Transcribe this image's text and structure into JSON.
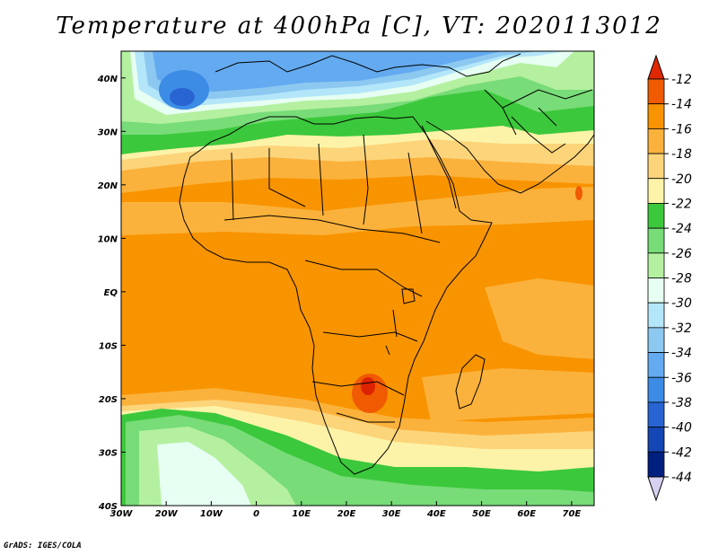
{
  "title": "Temperature at 400hPa [C], VT: 2020113012",
  "credit": "GrADS: IGES/COLA",
  "map": {
    "lon_range": [
      -30,
      75
    ],
    "lat_range": [
      -40,
      45
    ],
    "lon_ticks": [
      {
        "v": -30,
        "label": "30W"
      },
      {
        "v": -20,
        "label": "20W"
      },
      {
        "v": -10,
        "label": "10W"
      },
      {
        "v": 0,
        "label": "0"
      },
      {
        "v": 10,
        "label": "10E"
      },
      {
        "v": 20,
        "label": "20E"
      },
      {
        "v": 30,
        "label": "30E"
      },
      {
        "v": 40,
        "label": "40E"
      },
      {
        "v": 50,
        "label": "50E"
      },
      {
        "v": 60,
        "label": "60E"
      },
      {
        "v": 70,
        "label": "70E"
      }
    ],
    "lat_ticks": [
      {
        "v": 40,
        "label": "40N"
      },
      {
        "v": 30,
        "label": "30N"
      },
      {
        "v": 20,
        "label": "20N"
      },
      {
        "v": 10,
        "label": "10N"
      },
      {
        "v": 0,
        "label": "EQ"
      },
      {
        "v": -10,
        "label": "10S"
      },
      {
        "v": -20,
        "label": "20S"
      },
      {
        "v": -30,
        "label": "30S"
      },
      {
        "v": -40,
        "label": "40S"
      }
    ]
  },
  "colorbar": {
    "labels": [
      "-12",
      "-14",
      "-16",
      "-18",
      "-20",
      "-22",
      "-24",
      "-26",
      "-28",
      "-30",
      "-32",
      "-34",
      "-36",
      "-38",
      "-40",
      "-42",
      "-44"
    ],
    "colors": [
      "#dd2200",
      "#f05a00",
      "#f89400",
      "#fbb23c",
      "#fcd47a",
      "#fdf3a8",
      "#3cc83c",
      "#78dc78",
      "#b4f0a0",
      "#e6fff2",
      "#b4e6fa",
      "#8cc8f0",
      "#64aaf0",
      "#3c8ce6",
      "#2864d2",
      "#1446b4",
      "#002080"
    ],
    "over_color": "#e02800",
    "under_color": "#d8d0f0"
  }
}
